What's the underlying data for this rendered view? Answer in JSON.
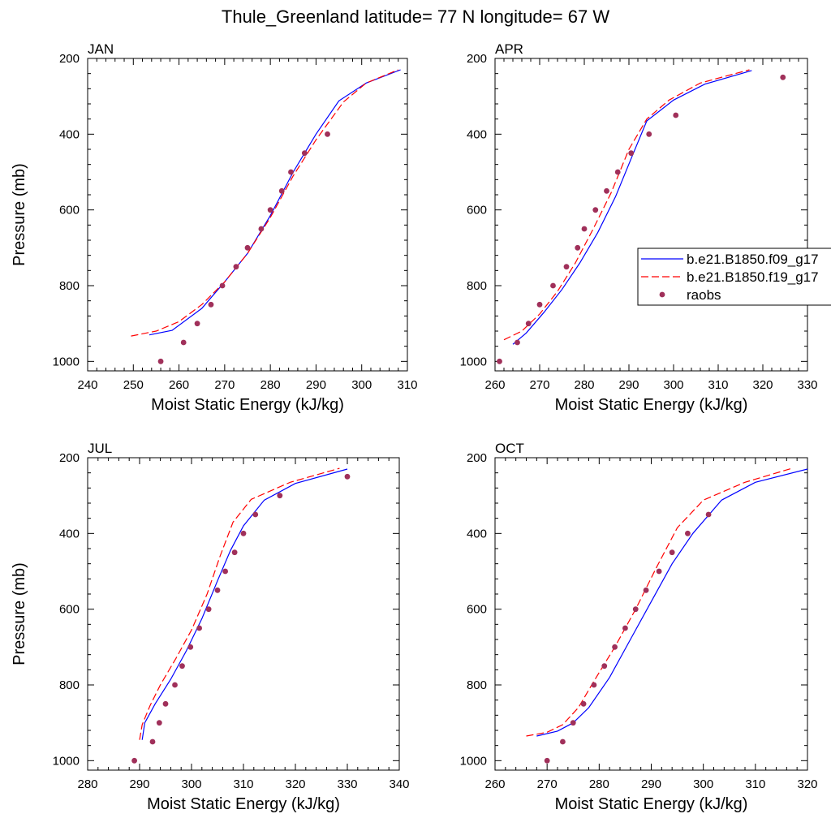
{
  "title": "Thule_Greenland  latitude= 77 N longitude= 67 W",
  "colors": {
    "model1": "#0000ff",
    "model2": "#ff0000",
    "obs": "#a0305a",
    "axis": "#000000"
  },
  "legend": {
    "entries": [
      {
        "label": "b.e21.B1850.f09_g17",
        "style": "solid",
        "color": "#0000ff"
      },
      {
        "label": "b.e21.B1850.f19_g17",
        "style": "dashed",
        "color": "#ff0000"
      },
      {
        "label": "raobs",
        "style": "marker",
        "color": "#a0305a"
      }
    ]
  },
  "chart_data": [
    {
      "type": "line",
      "panel": "JAN",
      "xlabel": "Moist Static Energy (kJ/kg)",
      "ylabel": "Pressure (mb)",
      "xlim": [
        240,
        310
      ],
      "ylim": [
        1025,
        200
      ],
      "xticks": [
        240,
        250,
        260,
        270,
        280,
        290,
        300,
        310
      ],
      "yticks": [
        200,
        400,
        600,
        800,
        1000
      ],
      "series": [
        {
          "name": "b.e21.B1850.f09_g17",
          "style": "solid",
          "x": [
            253.5,
            258.5,
            265,
            270,
            275,
            280,
            285,
            290,
            295,
            301,
            308.5
          ],
          "y": [
            930,
            918,
            860,
            790,
            715,
            615,
            500,
            400,
            312,
            265,
            230
          ]
        },
        {
          "name": "b.e21.B1850.f19_g17",
          "style": "dashed",
          "x": [
            249.5,
            255,
            260,
            265,
            270,
            275,
            280,
            285,
            290,
            296,
            301,
            308
          ],
          "y": [
            933,
            920,
            895,
            850,
            790,
            715,
            620,
            510,
            415,
            315,
            265,
            230
          ]
        },
        {
          "name": "raobs",
          "style": "marker",
          "x": [
            256,
            261,
            264,
            267,
            269.5,
            272.5,
            275,
            278,
            280,
            282.5,
            284.5,
            287.5,
            292.5
          ],
          "y": [
            1000,
            950,
            900,
            850,
            800,
            750,
            700,
            650,
            600,
            550,
            500,
            450,
            400
          ]
        }
      ]
    },
    {
      "type": "line",
      "panel": "APR",
      "xlabel": "Moist Static Energy (kJ/kg)",
      "ylabel": "",
      "xlim": [
        260,
        330
      ],
      "ylim": [
        1025,
        200
      ],
      "xticks": [
        260,
        270,
        280,
        290,
        300,
        310,
        320,
        330
      ],
      "yticks": [
        200,
        400,
        600,
        800,
        1000
      ],
      "series": [
        {
          "name": "b.e21.B1850.f09_g17",
          "style": "solid",
          "x": [
            264,
            267,
            271,
            275,
            279,
            283,
            287,
            291,
            294,
            300,
            307,
            317.5
          ],
          "y": [
            955,
            925,
            870,
            810,
            740,
            660,
            565,
            450,
            365,
            310,
            268,
            232
          ]
        },
        {
          "name": "b.e21.B1850.f19_g17",
          "style": "dashed",
          "x": [
            262,
            266,
            270,
            274,
            278,
            282,
            286,
            290,
            294,
            299,
            306,
            317
          ],
          "y": [
            943,
            920,
            875,
            815,
            740,
            650,
            555,
            440,
            360,
            310,
            265,
            230
          ]
        },
        {
          "name": "raobs",
          "style": "marker",
          "x": [
            261,
            265,
            267.5,
            270,
            273,
            276,
            278.5,
            280,
            282.5,
            285,
            287.5,
            290.5,
            294.5,
            300.5,
            324.5
          ],
          "y": [
            1000,
            950,
            900,
            850,
            800,
            750,
            700,
            650,
            600,
            550,
            500,
            450,
            400,
            350,
            250
          ]
        }
      ]
    },
    {
      "type": "line",
      "panel": "JUL",
      "xlabel": "Moist Static Energy (kJ/kg)",
      "ylabel": "Pressure (mb)",
      "xlim": [
        280,
        340
      ],
      "ylim": [
        1025,
        200
      ],
      "xticks": [
        280,
        290,
        300,
        310,
        320,
        330,
        340
      ],
      "yticks": [
        200,
        400,
        600,
        800,
        1000
      ],
      "series": [
        {
          "name": "b.e21.B1850.f09_g17",
          "style": "solid",
          "x": [
            290.5,
            291,
            293,
            296,
            299,
            302,
            305,
            307.5,
            310,
            314,
            320,
            330
          ],
          "y": [
            945,
            900,
            850,
            785,
            710,
            625,
            525,
            445,
            380,
            312,
            268,
            230
          ]
        },
        {
          "name": "b.e21.B1850.f19_g17",
          "style": "dashed",
          "x": [
            290,
            290.5,
            292,
            294,
            297,
            300,
            303,
            305.5,
            308,
            311.5,
            319,
            328.5
          ],
          "y": [
            945,
            905,
            855,
            800,
            730,
            655,
            560,
            460,
            370,
            310,
            265,
            228
          ]
        },
        {
          "name": "raobs",
          "style": "marker",
          "x": [
            289,
            292.5,
            293.8,
            295,
            296.8,
            298.2,
            299.8,
            301.5,
            303.3,
            305,
            306.5,
            308.3,
            310,
            312.3,
            317,
            330
          ],
          "y": [
            1000,
            950,
            900,
            850,
            800,
            750,
            700,
            650,
            600,
            550,
            500,
            450,
            400,
            350,
            300,
            250
          ]
        }
      ]
    },
    {
      "type": "line",
      "panel": "OCT",
      "xlabel": "Moist Static Energy (kJ/kg)",
      "ylabel": "",
      "xlim": [
        260,
        320
      ],
      "ylim": [
        1025,
        200
      ],
      "xticks": [
        260,
        270,
        280,
        290,
        300,
        310,
        320
      ],
      "yticks": [
        200,
        400,
        600,
        800,
        1000
      ],
      "series": [
        {
          "name": "b.e21.B1850.f09_g17",
          "style": "solid",
          "x": [
            268,
            272,
            275,
            278,
            282,
            286,
            290,
            294,
            298,
            303.5,
            310,
            320
          ],
          "y": [
            935,
            922,
            900,
            860,
            780,
            680,
            580,
            480,
            400,
            312,
            265,
            230
          ]
        },
        {
          "name": "b.e21.B1850.f19_g17",
          "style": "dashed",
          "x": [
            266,
            270,
            273,
            276,
            279,
            283,
            287,
            291,
            295,
            300,
            308,
            317
          ],
          "y": [
            935,
            925,
            905,
            860,
            790,
            700,
            600,
            490,
            385,
            312,
            265,
            228
          ]
        },
        {
          "name": "raobs",
          "style": "marker",
          "x": [
            270,
            273,
            275,
            277,
            279,
            281,
            283,
            285,
            287,
            289,
            291.5,
            294,
            297,
            301
          ],
          "y": [
            1000,
            950,
            900,
            850,
            800,
            750,
            700,
            650,
            600,
            550,
            500,
            450,
            400,
            350
          ]
        }
      ]
    }
  ]
}
